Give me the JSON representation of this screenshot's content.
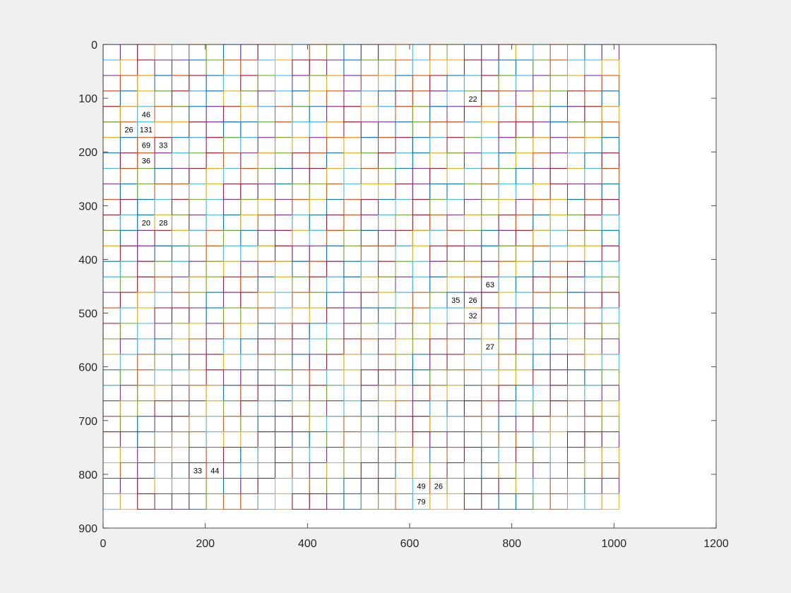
{
  "chart_data": {
    "type": "grid",
    "title": "",
    "xlabel": "",
    "ylabel": "",
    "xlim": [
      0,
      1200
    ],
    "ylim": [
      0,
      900
    ],
    "y_reversed": true,
    "x_ticks": [
      0,
      200,
      400,
      600,
      800,
      1000,
      1200
    ],
    "y_ticks": [
      0,
      100,
      200,
      300,
      400,
      500,
      600,
      700,
      800,
      900
    ],
    "grid": {
      "columns": 30,
      "rows": 30,
      "x_range": [
        0,
        1010
      ],
      "y_range": [
        0,
        865
      ]
    },
    "palette": [
      "#0072BD",
      "#D95319",
      "#EDB120",
      "#7E2F8E",
      "#77AC30",
      "#4DBEEE",
      "#A2142F"
    ],
    "labels": [
      {
        "col": 21,
        "row": 3,
        "text": "22"
      },
      {
        "col": 2,
        "row": 4,
        "text": "46"
      },
      {
        "col": 1,
        "row": 5,
        "text": "26"
      },
      {
        "col": 2,
        "row": 5,
        "text": "131"
      },
      {
        "col": 2,
        "row": 6,
        "text": "69"
      },
      {
        "col": 3,
        "row": 6,
        "text": "33"
      },
      {
        "col": 2,
        "row": 7,
        "text": "36"
      },
      {
        "col": 2,
        "row": 11,
        "text": "20"
      },
      {
        "col": 3,
        "row": 11,
        "text": "28"
      },
      {
        "col": 22,
        "row": 15,
        "text": "63"
      },
      {
        "col": 20,
        "row": 16,
        "text": "35"
      },
      {
        "col": 21,
        "row": 16,
        "text": "26"
      },
      {
        "col": 21,
        "row": 17,
        "text": "32"
      },
      {
        "col": 22,
        "row": 19,
        "text": "27"
      },
      {
        "col": 5,
        "row": 27,
        "text": "33"
      },
      {
        "col": 6,
        "row": 27,
        "text": "44"
      },
      {
        "col": 18,
        "row": 28,
        "text": "49"
      },
      {
        "col": 19,
        "row": 28,
        "text": "26"
      },
      {
        "col": 18,
        "row": 29,
        "text": "79"
      }
    ]
  }
}
